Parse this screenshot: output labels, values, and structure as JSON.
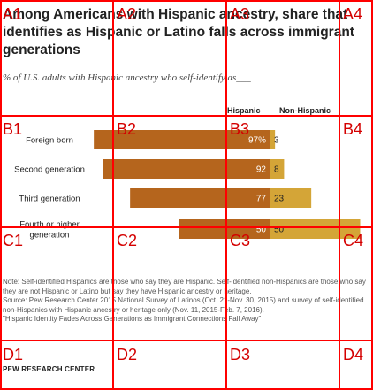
{
  "chart_data": {
    "type": "bar",
    "title": "Among Americans with Hispanic ancestry, share that identifies as Hispanic or Latino falls across immigrant generations",
    "subtitle": "% of U.S. adults with Hispanic ancestry who self-identify as___",
    "categories": [
      "Foreign born",
      "Second generation",
      "Third generation",
      "Fourth or higher generation"
    ],
    "series": [
      {
        "name": "Hispanic",
        "values": [
          97,
          92,
          77,
          50
        ],
        "labels": [
          "97%",
          "92",
          "77",
          "50"
        ],
        "color": "#b5651d"
      },
      {
        "name": "Non-Hispanic",
        "values": [
          3,
          8,
          23,
          50
        ],
        "labels": [
          "3",
          "8",
          "23",
          "50"
        ],
        "color": "#d4a537"
      }
    ],
    "stacked": true,
    "layout": "diverging at category boundary",
    "xlim": [
      0,
      100
    ],
    "grid": false,
    "legend": "column headers above bars"
  },
  "notes": {
    "note": "Note: Self-identified Hispanics are those who say they are Hispanic. Self-identified non-Hispanics are those who say they are not Hispanic or Latino but say they have Hispanic ancestry or heritage.",
    "source": "Source: Pew Research Center 2015 National Survey of Latinos (Oct. 21-Nov. 30, 2015) and survey of self-identified non-Hispanics with Hispanic ancestry or heritage only (Nov. 11, 2015-Feb. 7, 2016).",
    "report": "\"Hispanic Identity Fades Across Generations as Immigrant Connections Fall Away\"",
    "credit": "PEW RESEARCH CENTER"
  },
  "grid_overlay": {
    "color": "#ff0000",
    "labels": [
      "A1",
      "A2",
      "A3",
      "A4",
      "B1",
      "B2",
      "B3",
      "B4",
      "C1",
      "C2",
      "C3",
      "C4",
      "D1",
      "D2",
      "D3",
      "D4"
    ]
  }
}
